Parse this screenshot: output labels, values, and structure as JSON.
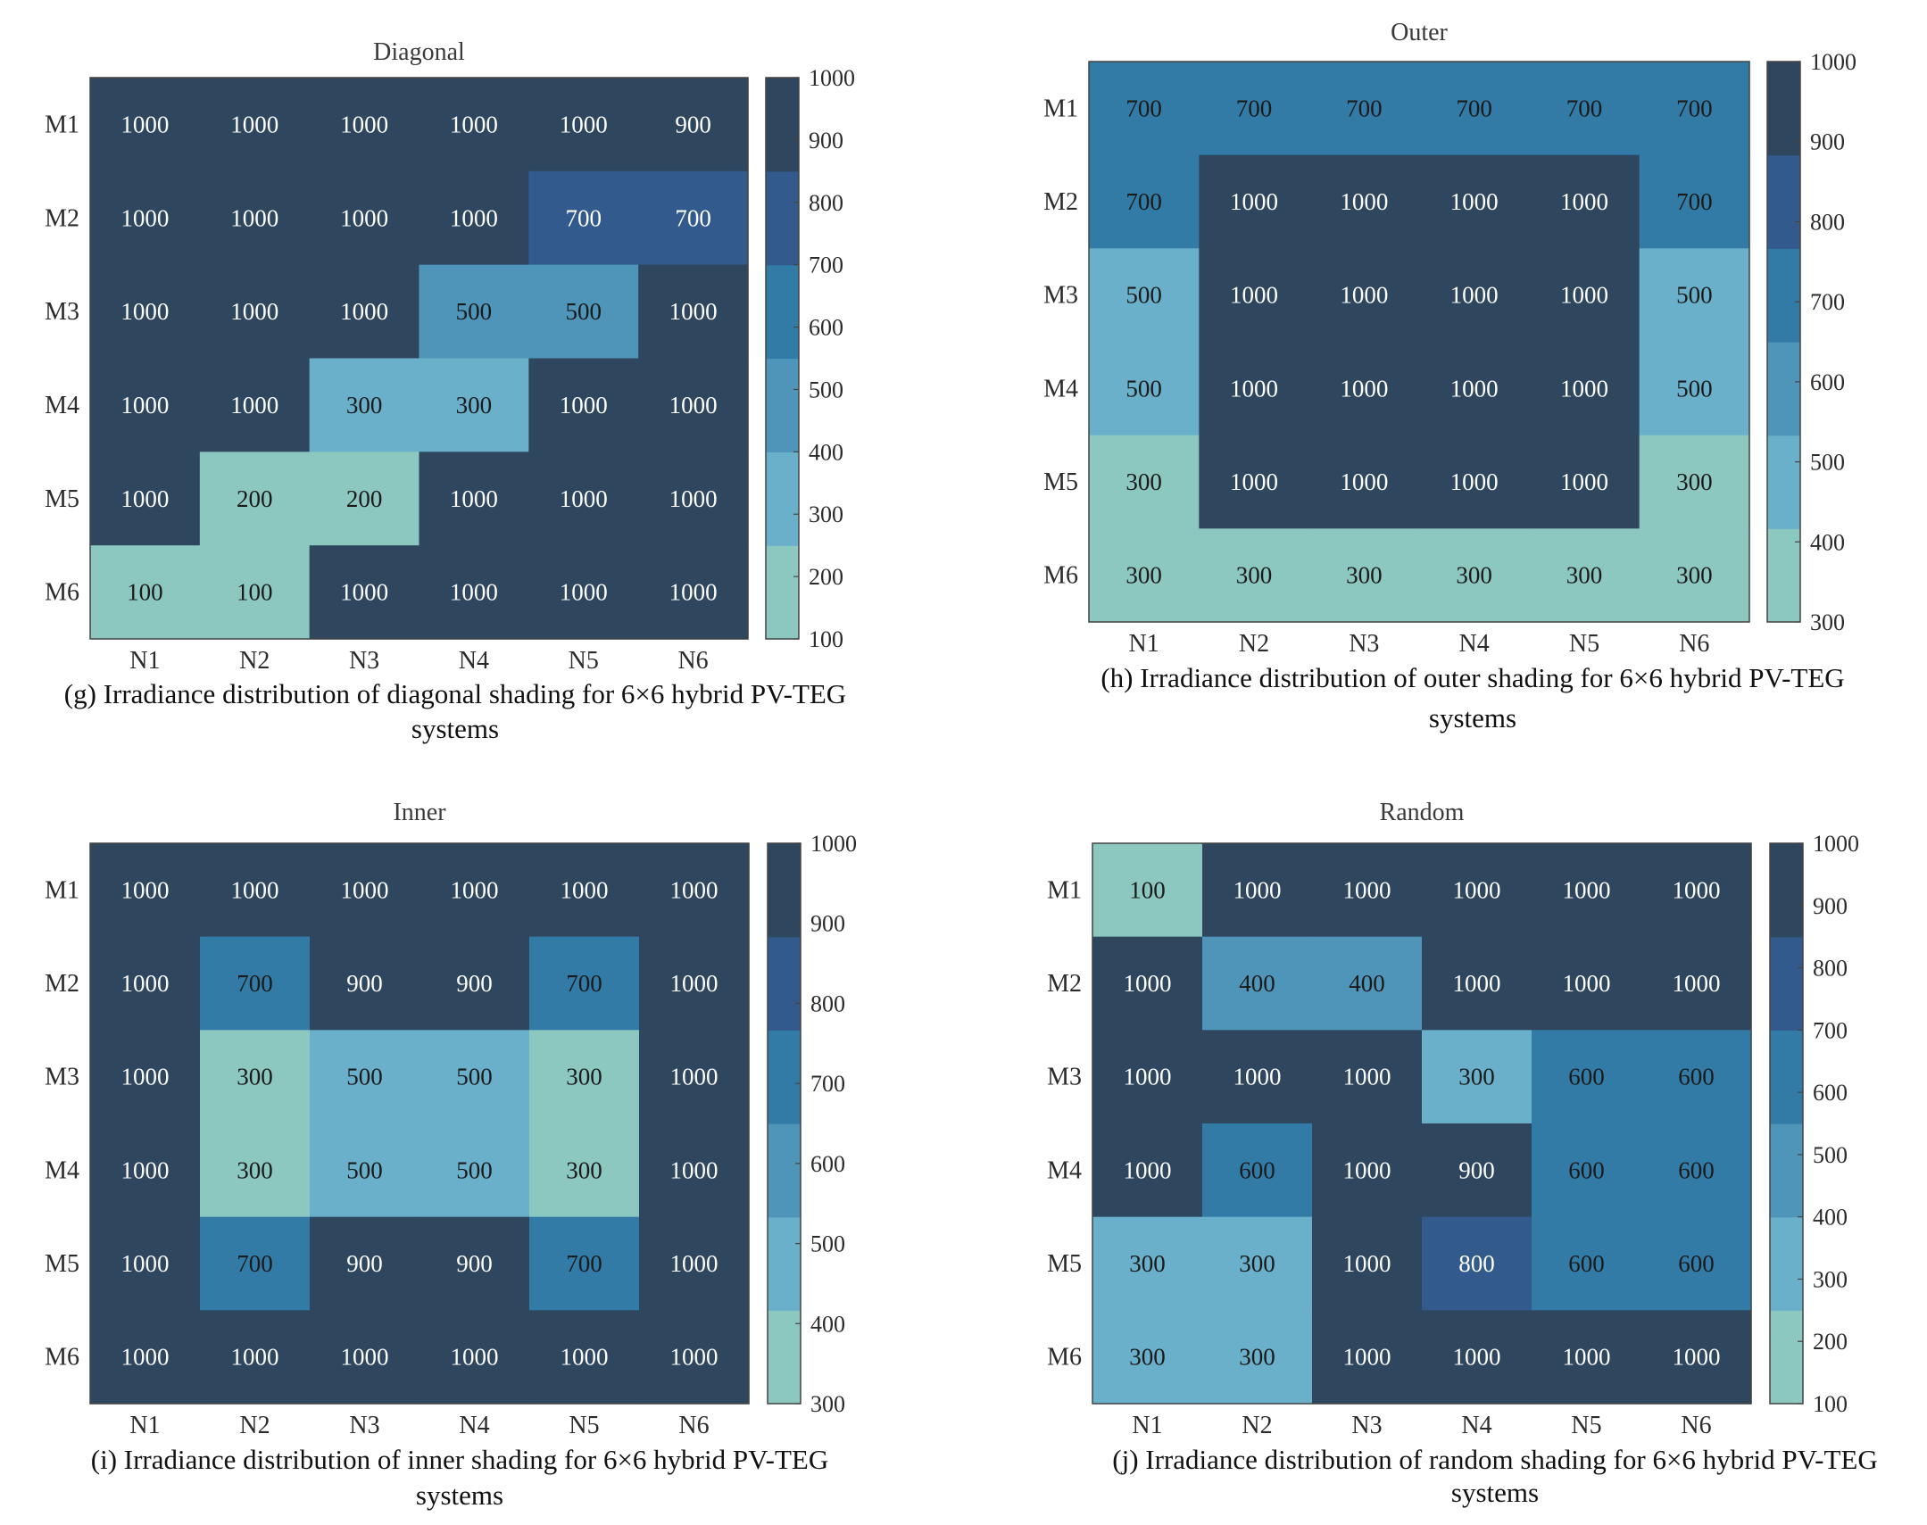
{
  "chart_data": [
    {
      "id": "g",
      "type": "heatmap",
      "title": "Diagonal",
      "rows": [
        "M1",
        "M2",
        "M3",
        "M4",
        "M5",
        "M6"
      ],
      "cols": [
        "N1",
        "N2",
        "N3",
        "N4",
        "N5",
        "N6"
      ],
      "values": [
        [
          1000,
          1000,
          1000,
          1000,
          1000,
          900
        ],
        [
          1000,
          1000,
          1000,
          1000,
          700,
          700
        ],
        [
          1000,
          1000,
          1000,
          500,
          500,
          1000
        ],
        [
          1000,
          1000,
          300,
          300,
          1000,
          1000
        ],
        [
          1000,
          200,
          200,
          1000,
          1000,
          1000
        ],
        [
          100,
          100,
          1000,
          1000,
          1000,
          1000
        ]
      ],
      "colorbar": {
        "min": 100,
        "max": 1000,
        "ticks": [
          100,
          200,
          300,
          400,
          500,
          600,
          700,
          800,
          900,
          1000
        ]
      },
      "caption": [
        "(g)  Irradiance distribution of diagonal shading for 6×6 hybrid PV-TEG",
        "systems"
      ]
    },
    {
      "id": "h",
      "type": "heatmap",
      "title": "Outer",
      "rows": [
        "M1",
        "M2",
        "M3",
        "M4",
        "M5",
        "M6"
      ],
      "cols": [
        "N1",
        "N2",
        "N3",
        "N4",
        "N5",
        "N6"
      ],
      "values": [
        [
          700,
          700,
          700,
          700,
          700,
          700
        ],
        [
          700,
          1000,
          1000,
          1000,
          1000,
          700
        ],
        [
          500,
          1000,
          1000,
          1000,
          1000,
          500
        ],
        [
          500,
          1000,
          1000,
          1000,
          1000,
          500
        ],
        [
          300,
          1000,
          1000,
          1000,
          1000,
          300
        ],
        [
          300,
          300,
          300,
          300,
          300,
          300
        ]
      ],
      "colorbar": {
        "min": 300,
        "max": 1000,
        "ticks": [
          300,
          400,
          500,
          600,
          700,
          800,
          900,
          1000
        ]
      },
      "caption": [
        "(h)  Irradiance distribution of outer shading for 6×6 hybrid PV-TEG",
        "systems"
      ]
    },
    {
      "id": "i",
      "type": "heatmap",
      "title": "Inner",
      "rows": [
        "M1",
        "M2",
        "M3",
        "M4",
        "M5",
        "M6"
      ],
      "cols": [
        "N1",
        "N2",
        "N3",
        "N4",
        "N5",
        "N6"
      ],
      "values": [
        [
          1000,
          1000,
          1000,
          1000,
          1000,
          1000
        ],
        [
          1000,
          700,
          900,
          900,
          700,
          1000
        ],
        [
          1000,
          300,
          500,
          500,
          300,
          1000
        ],
        [
          1000,
          300,
          500,
          500,
          300,
          1000
        ],
        [
          1000,
          700,
          900,
          900,
          700,
          1000
        ],
        [
          1000,
          1000,
          1000,
          1000,
          1000,
          1000
        ]
      ],
      "colorbar": {
        "min": 300,
        "max": 1000,
        "ticks": [
          300,
          400,
          500,
          600,
          700,
          800,
          900,
          1000
        ]
      },
      "caption": [
        "(i)  Irradiance distribution of inner shading for 6×6 hybrid PV-TEG",
        "systems"
      ]
    },
    {
      "id": "j",
      "type": "heatmap",
      "title": "Random",
      "rows": [
        "M1",
        "M2",
        "M3",
        "M4",
        "M5",
        "M6"
      ],
      "cols": [
        "N1",
        "N2",
        "N3",
        "N4",
        "N5",
        "N6"
      ],
      "values": [
        [
          100,
          1000,
          1000,
          1000,
          1000,
          1000
        ],
        [
          1000,
          400,
          400,
          1000,
          1000,
          1000
        ],
        [
          1000,
          1000,
          1000,
          300,
          600,
          600
        ],
        [
          1000,
          600,
          1000,
          900,
          600,
          600
        ],
        [
          300,
          300,
          1000,
          800,
          600,
          600
        ],
        [
          300,
          300,
          1000,
          1000,
          1000,
          1000
        ]
      ],
      "colorbar": {
        "min": 100,
        "max": 1000,
        "ticks": [
          100,
          200,
          300,
          400,
          500,
          600,
          700,
          800,
          900,
          1000
        ]
      },
      "caption": [
        "(j)  Irradiance distribution of random shading for 6×6 hybrid PV-TEG",
        "systems"
      ]
    }
  ],
  "palette": [
    "#8cc7c0",
    "#6ab0ca",
    "#4f95b9",
    "#337ba7",
    "#325a8c",
    "#2e475f"
  ],
  "cell_text_colors": {
    "dark": "#ffffff",
    "light": "#1a1a1a"
  }
}
